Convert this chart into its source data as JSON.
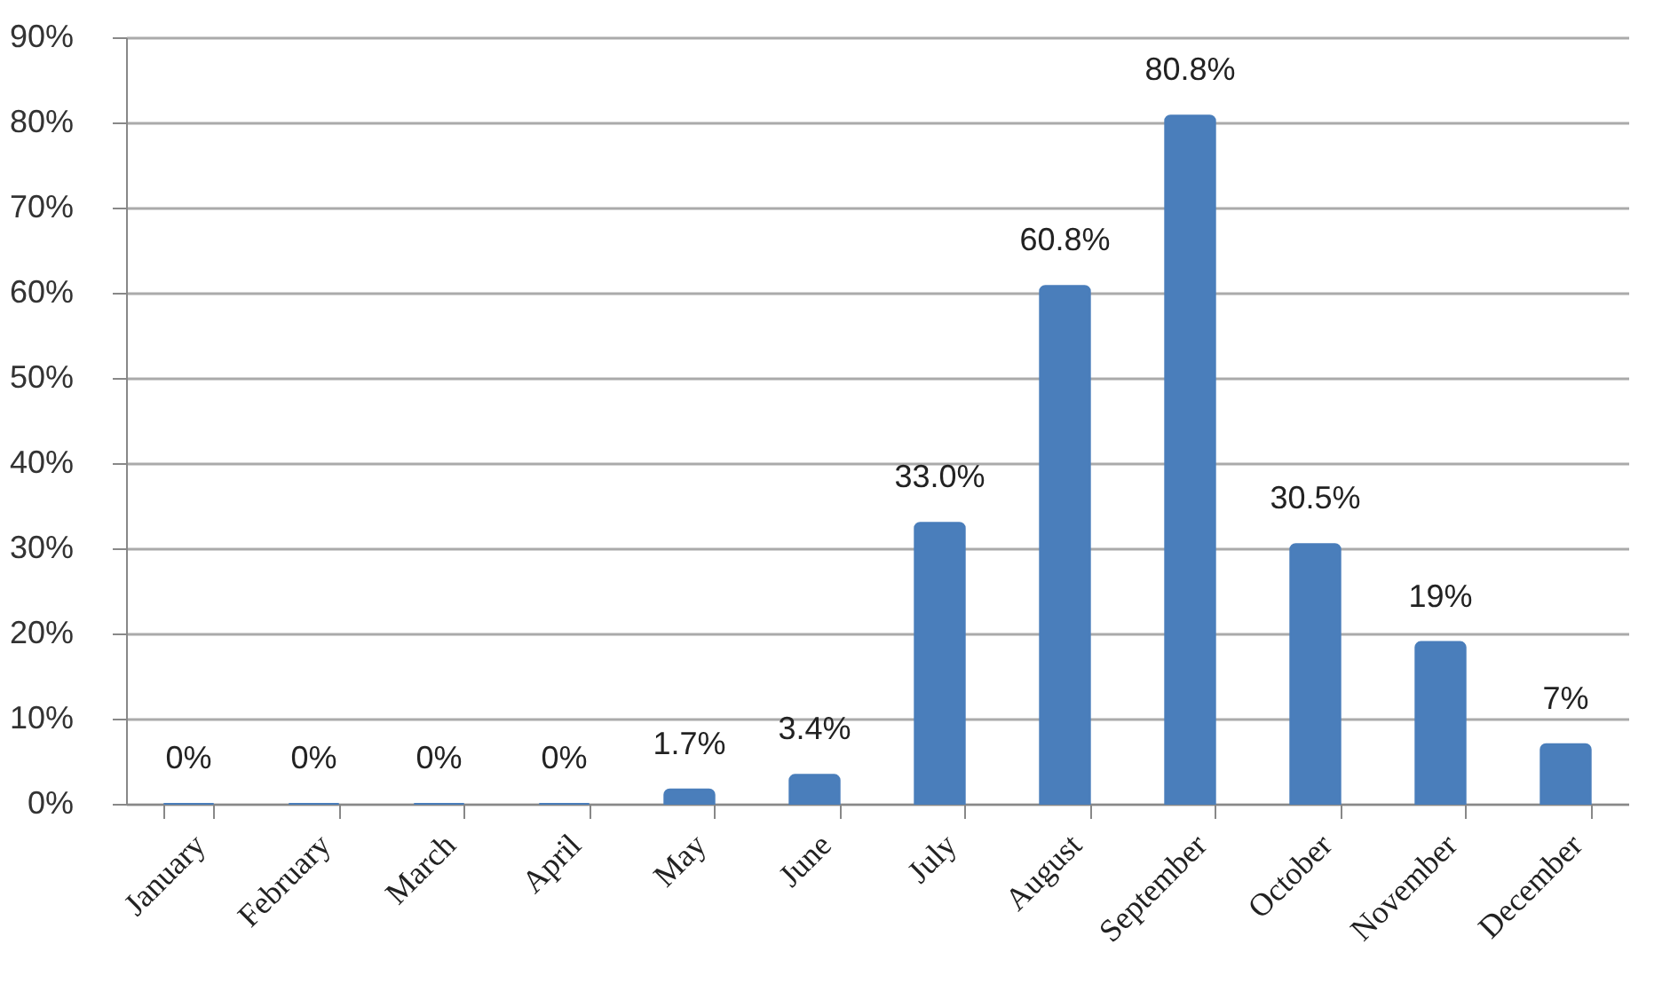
{
  "chart_data": {
    "type": "bar",
    "categories": [
      "January",
      "February",
      "March",
      "April",
      "May",
      "June",
      "July",
      "August",
      "September",
      "October",
      "November",
      "December"
    ],
    "values": [
      0,
      0,
      0,
      0,
      1.7,
      3.4,
      33.0,
      60.8,
      80.8,
      30.5,
      19,
      7
    ],
    "value_labels": [
      "0%",
      "0%",
      "0%",
      "0%",
      "1.7%",
      "3.4%",
      "33.0%",
      "60.8%",
      "80.8%",
      "30.5%",
      "19%",
      "7%"
    ],
    "color": "#4a7ebb",
    "ylim": [
      0,
      90
    ],
    "yticks": [
      {
        "value": 0,
        "label": "0%"
      },
      {
        "value": 10,
        "label": "10%"
      },
      {
        "value": 20,
        "label": "20%"
      },
      {
        "value": 30,
        "label": "30%"
      },
      {
        "value": 40,
        "label": "40%"
      },
      {
        "value": 50,
        "label": "50%"
      },
      {
        "value": 60,
        "label": "60%"
      },
      {
        "value": 70,
        "label": "70%"
      },
      {
        "value": 80,
        "label": "80%"
      },
      {
        "value": 90,
        "label": "90%"
      }
    ],
    "grid": "y"
  }
}
